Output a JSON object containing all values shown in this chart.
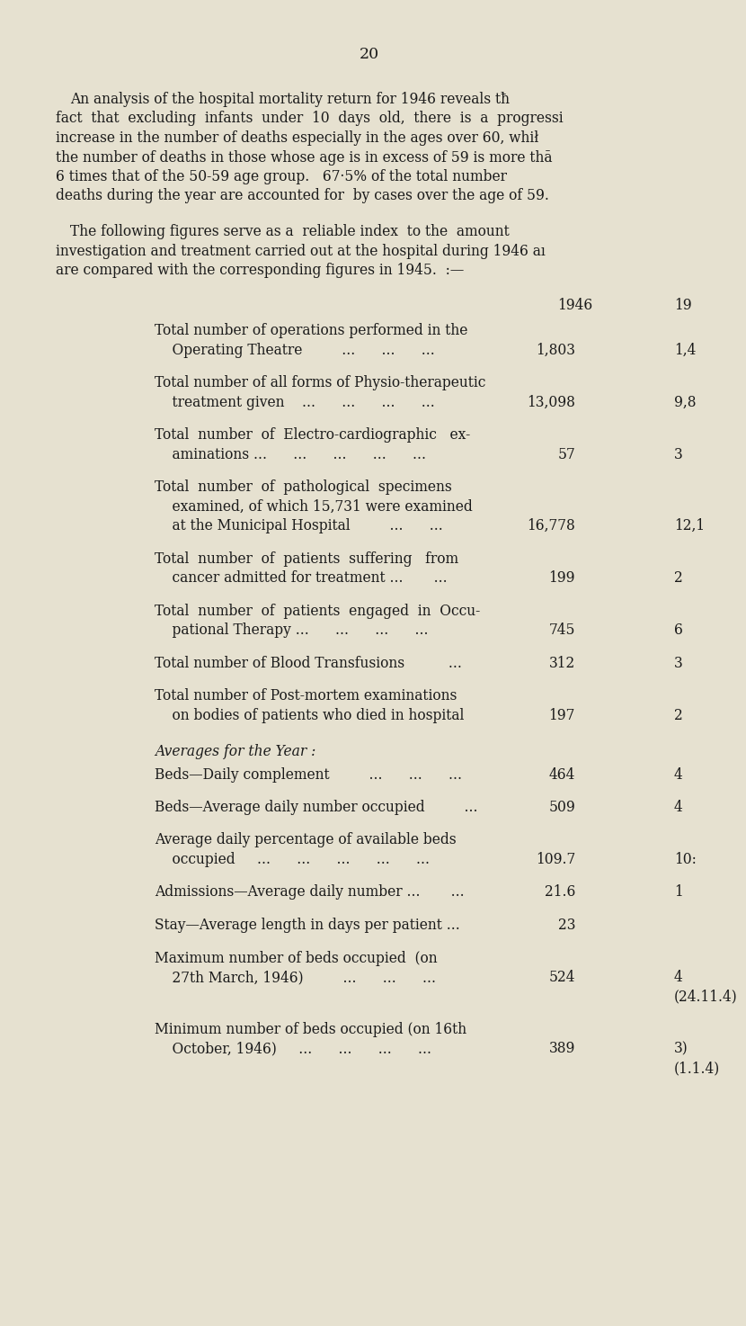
{
  "page_number": "20",
  "background_color": "#e6e1d0",
  "text_color": "#1a1a1a",
  "para1_lines": [
    "An analysis of the hospital mortality return for 1946 reveals tħ",
    "fact  that  excluding  infants  under  10  days  old,  there  is  a  progressi",
    "increase in the number of deaths especially in the ages over 60, whił",
    "the number of deaths in those whose age is in excess of 59 is more thā",
    "6 times that of the 50-59 age group.   67·5% of the total number",
    "deaths during the year are accounted for  by cases over the age of 59."
  ],
  "para2_lines": [
    "The following figures serve as a  reliable index  to the  amount",
    "investigation and treatment carried out at the hospital during 1946 aı",
    "are compared with the corresponding figures in 1945.  :—"
  ],
  "col_header_1946": "1946",
  "col_header_1945": "19",
  "rows": [
    {
      "label_lines": [
        "Total number of operations performed in the",
        "    Operating Theatre         ...      ...      ..."
      ],
      "val1946": "1,803",
      "val1945": "1,4"
    },
    {
      "label_lines": [
        "Total number of all forms of Physio-therapeutic",
        "    treatment given    ...      ...      ...      ..."
      ],
      "val1946": "13,098",
      "val1945": "9,8"
    },
    {
      "label_lines": [
        "Total  number  of  Electro-cardiographic   ex-",
        "    aminations ...      ...      ...      ...      ..."
      ],
      "val1946": "57",
      "val1945": "3"
    },
    {
      "label_lines": [
        "Total  number  of  pathological  specimens",
        "    examined, of which 15,731 were examined",
        "    at the Municipal Hospital         ...      ..."
      ],
      "val1946": "16,778",
      "val1945": "12,1"
    },
    {
      "label_lines": [
        "Total  number  of  patients  suffering   from",
        "    cancer admitted for treatment ...       ..."
      ],
      "val1946": "199",
      "val1945": "2"
    },
    {
      "label_lines": [
        "Total  number  of  patients  engaged  in  Occu-",
        "    pational Therapy ...      ...      ...      ..."
      ],
      "val1946": "745",
      "val1945": "6"
    },
    {
      "label_lines": [
        "Total number of Blood Transfusions          ..."
      ],
      "val1946": "312",
      "val1945": "3"
    },
    {
      "label_lines": [
        "Total number of Post-mortem examinations",
        "    on bodies of patients who died in hospital"
      ],
      "val1946": "197",
      "val1945": "2"
    }
  ],
  "averages_header": "Averages for the Year :",
  "averages": [
    {
      "label_lines": [
        "Beds—Daily complement         ...      ...      ..."
      ],
      "val1946": "464",
      "val1945": "4"
    },
    {
      "label_lines": [
        "Beds—Average daily number occupied         ..."
      ],
      "val1946": "509",
      "val1945": "4"
    },
    {
      "label_lines": [
        "Average daily percentage of available beds",
        "    occupied     ...      ...      ...      ...      ..."
      ],
      "val1946": "109.7",
      "val1945": "10:"
    },
    {
      "label_lines": [
        "Admissions—Average daily number ...       ..."
      ],
      "val1946": "21.6",
      "val1945": "1"
    },
    {
      "label_lines": [
        "Stay—Average length in days per patient ..."
      ],
      "val1946": "23",
      "val1945": ""
    },
    {
      "label_lines": [
        "Maximum number of beds occupied  (on",
        "    27th March, 1946)         ...      ...      ..."
      ],
      "val1946": "524",
      "val1945": "4",
      "note1945": "(24.11.4)"
    },
    {
      "label_lines": [
        "Minimum number of beds occupied (on 16th",
        "    October, 1946)     ...      ...      ...      ..."
      ],
      "val1946": "389",
      "val1945": "3)",
      "note1945": "(1.1.4)"
    }
  ]
}
